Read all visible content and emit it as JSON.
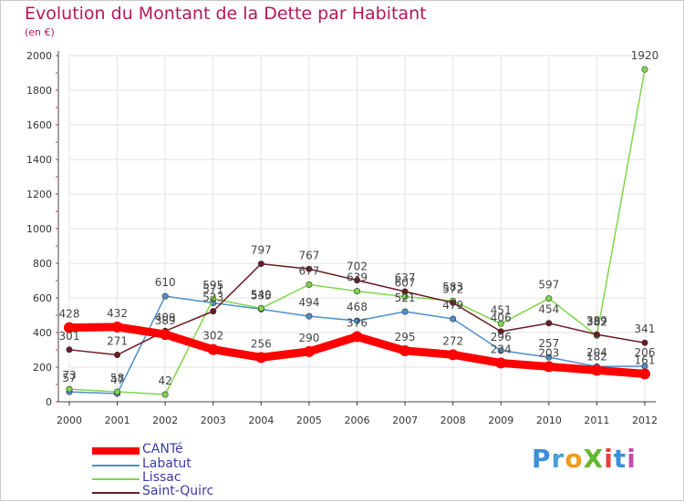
{
  "chart_data": {
    "type": "line",
    "title": "Evolution du Montant de la Dette par Habitant",
    "subtitle": "(en €)",
    "xlabel": "",
    "ylabel": "",
    "categories": [
      "2000",
      "2001",
      "2002",
      "2003",
      "2004",
      "2005",
      "2006",
      "2007",
      "2008",
      "2009",
      "2010",
      "2011",
      "2012"
    ],
    "ylim": [
      0,
      2000
    ],
    "yticks": [
      "0",
      "200",
      "400",
      "600",
      "800",
      "1000",
      "1200",
      "1400",
      "1600",
      "1800",
      "2000"
    ],
    "series": [
      {
        "name": "CANTé",
        "color": "#ff0000",
        "values": [
          428,
          432,
          389,
          302,
          256,
          290,
          376,
          295,
          272,
          224,
          203,
          182,
          161
        ],
        "labels": [
          "428",
          "432",
          "389",
          "302",
          "256",
          "290",
          "376",
          "295",
          "272",
          "224",
          "203",
          "182",
          "161"
        ]
      },
      {
        "name": "Labatut",
        "color": "#4f8fcc",
        "values": [
          57,
          47,
          610,
          571,
          535,
          494,
          468,
          521,
          479,
          296,
          257,
          204,
          206
        ],
        "labels": [
          "57",
          "47",
          "610",
          "571",
          "535",
          "494",
          "468",
          "521",
          "479",
          "296",
          "257",
          "204",
          "206"
        ]
      },
      {
        "name": "Lissac",
        "color": "#7fd64a",
        "values": [
          73,
          58,
          42,
          595,
          540,
          677,
          639,
          607,
          583,
          451,
          597,
          382,
          1920
        ],
        "labels": [
          "73",
          "58",
          "42",
          "595",
          "540",
          "677",
          "639",
          "607",
          "583",
          "451",
          "597",
          "382",
          "1920"
        ]
      },
      {
        "name": "Saint-Quirc",
        "color": "#6b1a24",
        "values": [
          301,
          271,
          409,
          523,
          797,
          767,
          702,
          637,
          572,
          406,
          454,
          389,
          341
        ],
        "labels": [
          "301",
          "271",
          "409",
          "523",
          "797",
          "767",
          "702",
          "637",
          "572",
          "406",
          "454",
          "389",
          "341"
        ]
      }
    ]
  },
  "brand": {
    "name": "ProXiti",
    "letters": [
      "P",
      "r",
      "o",
      "X",
      "i",
      "t",
      "i"
    ],
    "colors": [
      "#3a8fd9",
      "#4b9fd9",
      "#f29a1c",
      "#66b82e",
      "#e83e3e",
      "#3a8fd9",
      "#c04fb0"
    ]
  }
}
